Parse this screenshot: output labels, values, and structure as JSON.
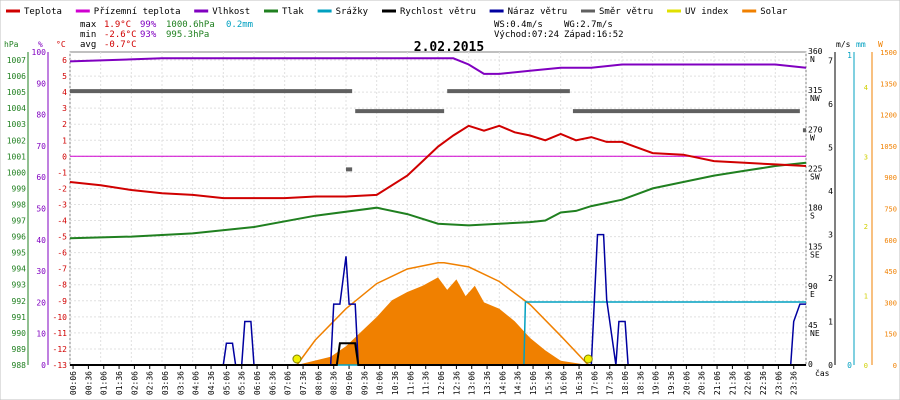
{
  "chart_data": {
    "type": "line",
    "title": "2.02.2015",
    "legend": [
      {
        "label": "Teplota",
        "color": "#d00000"
      },
      {
        "label": "Přízemní teplota",
        "color": "#d000d0"
      },
      {
        "label": "Vlhkost",
        "color": "#8000c0"
      },
      {
        "label": "Tlak",
        "color": "#208020"
      },
      {
        "label": "Srážky",
        "color": "#00a0c0"
      },
      {
        "label": "Rychlost větru",
        "color": "#000000"
      },
      {
        "label": "Náraz větru",
        "color": "#0000a0"
      },
      {
        "label": "Směr větru",
        "color": "#606060"
      },
      {
        "label": "UV index",
        "color": "#e0e000"
      },
      {
        "label": "Solar",
        "color": "#f08000"
      }
    ],
    "stats": {
      "max_label": "max",
      "max_temp": "1.9°C",
      "max_hum": "99%",
      "max_press": "1000.6hPa",
      "rain": "0.2mm",
      "min_label": "min",
      "min_temp": "-2.6°C",
      "min_hum": "93%",
      "min_press": "995.3hPa",
      "avg_label": "avg",
      "avg_temp": "-0.7°C",
      "ws": "WS:0.4m/s",
      "wg": "WG:2.7m/s",
      "sunrise": "Východ:07:24",
      "sunset": "Západ:16:52"
    },
    "axes": {
      "hpa_label": "hPa",
      "pct_label": "%",
      "temp_label": "°C",
      "ms_label": "m/s",
      "mm_label": "mm",
      "w_label": "W",
      "time_label": "čas",
      "hpa_ticks": [
        "1007",
        "1006",
        "1005",
        "1004",
        "1003",
        "1002",
        "1001",
        "1000",
        "999",
        "998",
        "997",
        "996",
        "995",
        "994",
        "993",
        "992",
        "991",
        "990",
        "989",
        "988"
      ],
      "pct_ticks": [
        "100",
        "90",
        "80",
        "70",
        "60",
        "50",
        "40",
        "30",
        "20",
        "10",
        "0"
      ],
      "temp_ticks": [
        "6",
        "5",
        "4",
        "3",
        "2",
        "1",
        "0",
        "-1",
        "-2",
        "-3",
        "-4",
        "-5",
        "-6",
        "-7",
        "-8",
        "-9",
        "-10",
        "-11",
        "-12",
        "-13"
      ],
      "dir_ticks": [
        [
          "360",
          "N"
        ],
        [
          "315",
          "NW"
        ],
        [
          "270",
          "W"
        ],
        [
          "225",
          "SW"
        ],
        [
          "180",
          "S"
        ],
        [
          "135",
          "SE"
        ],
        [
          "90",
          "E"
        ],
        [
          "45",
          "NE"
        ],
        [
          "0",
          ""
        ]
      ],
      "ms_ticks": [
        "7",
        "6",
        "5",
        "4",
        "3",
        "2",
        "1",
        "0"
      ],
      "mm_ticks": [
        "1",
        "0"
      ],
      "sr_ticks": [
        "4",
        "3",
        "2",
        "1",
        "0"
      ],
      "w_ticks": [
        "1500",
        "1350",
        "1200",
        "1050",
        "900",
        "750",
        "600",
        "450",
        "300",
        "150",
        "0"
      ],
      "time_ticks": [
        "00:06",
        "00:36",
        "01:06",
        "01:36",
        "02:06",
        "02:36",
        "03:06",
        "03:36",
        "04:06",
        "04:36",
        "05:06",
        "05:36",
        "06:06",
        "06:36",
        "07:06",
        "07:36",
        "08:06",
        "08:36",
        "09:06",
        "09:36",
        "10:06",
        "10:36",
        "11:06",
        "11:36",
        "12:06",
        "12:36",
        "13:06",
        "13:36",
        "14:06",
        "14:36",
        "15:06",
        "15:36",
        "16:06",
        "16:36",
        "17:06",
        "17:36",
        "18:06",
        "18:36",
        "19:06",
        "19:36",
        "20:06",
        "20:36",
        "21:06",
        "21:36",
        "22:06",
        "22:36",
        "23:06",
        "23:36"
      ],
      "temp_range": [
        -13,
        6.5
      ],
      "pct_range": [
        0,
        100
      ],
      "hpa_range": [
        988,
        1007.5
      ],
      "dir_range": [
        0,
        360
      ],
      "ms_range": [
        0,
        7.2
      ],
      "w_range": [
        0,
        1500
      ]
    },
    "series": {
      "temperature": {
        "t": [
          0,
          1,
          2,
          3,
          4,
          5,
          6,
          7,
          8,
          9,
          10,
          11,
          11.5,
          12,
          12.5,
          13,
          13.5,
          14,
          14.5,
          15,
          15.5,
          16,
          16.5,
          17,
          17.5,
          18,
          19,
          20,
          21,
          22,
          23,
          24
        ],
        "v": [
          -1.6,
          -1.8,
          -2.1,
          -2.3,
          -2.4,
          -2.6,
          -2.6,
          -2.6,
          -2.5,
          -2.5,
          -2.4,
          -1.2,
          -0.3,
          0.6,
          1.3,
          1.9,
          1.6,
          1.9,
          1.5,
          1.3,
          1.0,
          1.4,
          1.0,
          1.2,
          0.9,
          0.9,
          0.2,
          0.1,
          -0.3,
          -0.4,
          -0.5,
          -0.6
        ]
      },
      "ground_temp": {
        "t": [
          0,
          24
        ],
        "v": [
          0,
          0
        ]
      },
      "humidity": {
        "t": [
          0,
          3,
          6,
          9,
          12,
          12.5,
          13,
          13.5,
          14,
          15,
          16,
          17,
          18,
          19,
          20,
          21,
          22,
          23,
          24
        ],
        "v": [
          97,
          98,
          98,
          98,
          98,
          98,
          96,
          93,
          93,
          94,
          95,
          95,
          96,
          96,
          96,
          96,
          96,
          96,
          95
        ]
      },
      "pressure": {
        "t": [
          0,
          2,
          4,
          6,
          8,
          10,
          11,
          12,
          13,
          14,
          15,
          15.5,
          16,
          16.5,
          17,
          18,
          19,
          20,
          21,
          22,
          23,
          24
        ],
        "v": [
          995.9,
          996.0,
          996.2,
          996.6,
          997.3,
          997.8,
          997.4,
          996.8,
          996.7,
          996.8,
          996.9,
          997.0,
          997.5,
          997.6,
          997.9,
          998.3,
          999.0,
          999.4,
          999.8,
          1000.1,
          1000.4,
          1000.6
        ]
      },
      "rain": {
        "t": [
          0,
          14.8,
          14.85,
          24
        ],
        "v": [
          0,
          0,
          0.2,
          0.2
        ]
      },
      "wind_speed": {
        "t": [
          0,
          8.7,
          8.8,
          9.3,
          9.4,
          24
        ],
        "v": [
          0,
          0,
          0.5,
          0.5,
          0,
          0
        ]
      },
      "wind_gust": {
        "t": [
          0,
          5.0,
          5.1,
          5.3,
          5.4,
          5.6,
          5.7,
          5.9,
          6.0,
          8.5,
          8.6,
          8.8,
          9.0,
          9.1,
          9.3,
          9.4,
          17.0,
          17.1,
          17.2,
          17.4,
          17.5,
          17.8,
          17.9,
          18.1,
          18.2,
          23.5,
          23.6,
          23.8,
          24
        ],
        "v": [
          0,
          0,
          0.5,
          0.5,
          0,
          0,
          1.0,
          1.0,
          0,
          0,
          1.4,
          1.4,
          2.5,
          1.4,
          1.4,
          0,
          0,
          1.5,
          3.0,
          3.0,
          1.5,
          0,
          1.0,
          1.0,
          0,
          0,
          1.0,
          1.4,
          1.4
        ]
      },
      "wind_dir": [
        {
          "from": 0,
          "to": 9.2,
          "v": 315
        },
        {
          "from": 9.3,
          "to": 12.2,
          "v": 292
        },
        {
          "from": 12.3,
          "to": 16.3,
          "v": 315
        },
        {
          "from": 16.4,
          "to": 23.8,
          "v": 292
        },
        {
          "from": 23.9,
          "to": 24,
          "v": 270
        },
        {
          "from": 9.0,
          "to": 9.2,
          "v": 225
        }
      ],
      "uv_index": {
        "t": [
          7.4,
          16.9
        ],
        "v": [
          0,
          0
        ]
      },
      "solar_theoretical": {
        "t": [
          7.4,
          8,
          9,
          10,
          11,
          12,
          12.2,
          13,
          14,
          15,
          16,
          16.9
        ],
        "v": [
          0,
          120,
          270,
          390,
          460,
          490,
          490,
          470,
          400,
          290,
          140,
          0
        ]
      },
      "solar": {
        "t": [
          7.4,
          8.5,
          9,
          9.5,
          10,
          10.5,
          11,
          11.5,
          12,
          12.3,
          12.6,
          12.9,
          13.2,
          13.5,
          14,
          14.5,
          15,
          15.5,
          16,
          16.9
        ],
        "v": [
          0,
          40,
          90,
          160,
          230,
          310,
          350,
          380,
          420,
          360,
          410,
          330,
          380,
          300,
          270,
          210,
          130,
          70,
          20,
          0
        ]
      }
    }
  }
}
